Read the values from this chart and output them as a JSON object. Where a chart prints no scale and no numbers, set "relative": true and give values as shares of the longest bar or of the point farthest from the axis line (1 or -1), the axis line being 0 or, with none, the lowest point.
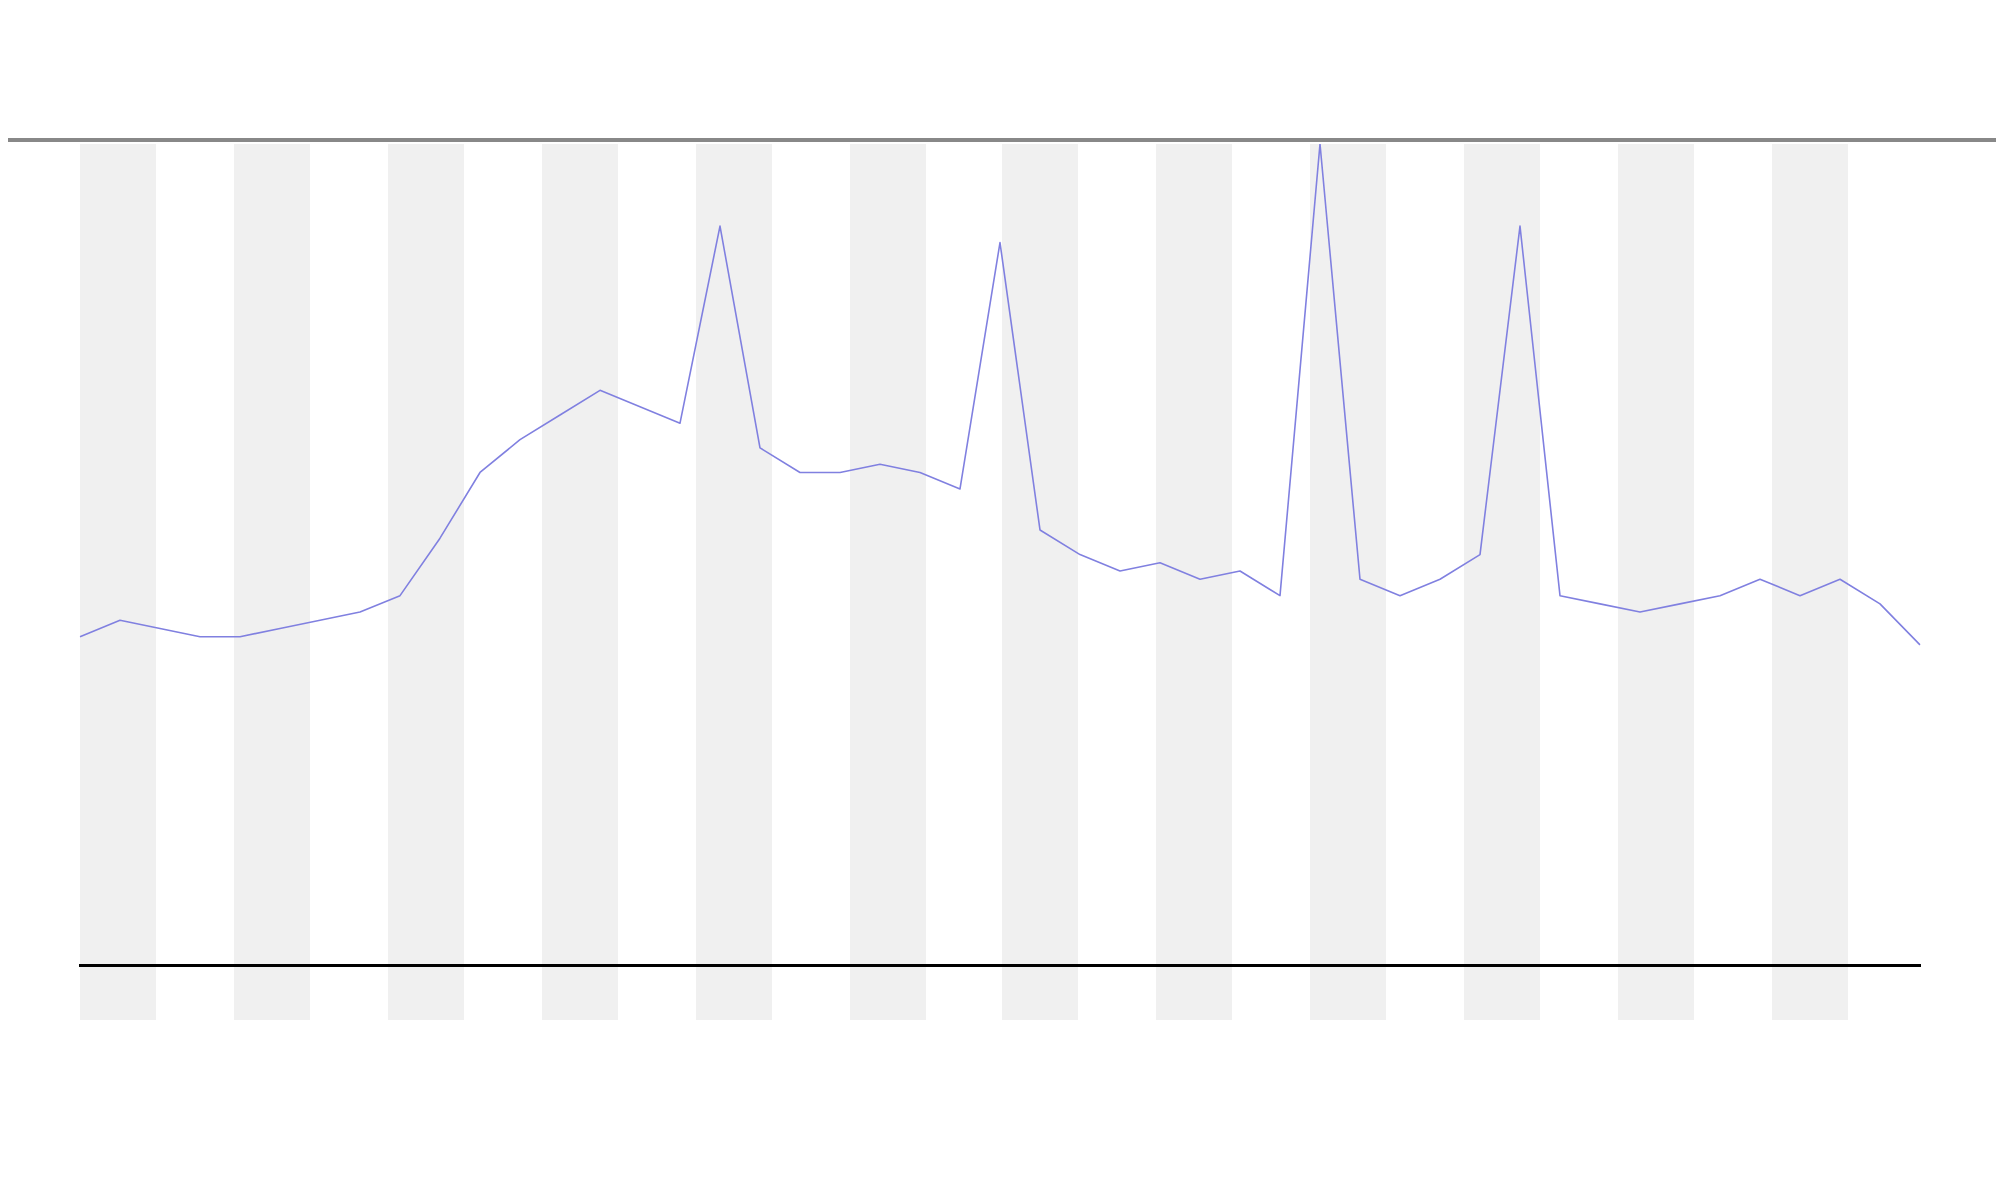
{
  "chart_data": {
    "type": "line",
    "relative": true,
    "marker": "none",
    "line_style": "solid",
    "categories": [
      null,
      null,
      null,
      null,
      null,
      null,
      null,
      null,
      null,
      null,
      null,
      null,
      null,
      null,
      null,
      null,
      null,
      null,
      null,
      null,
      null,
      null,
      null,
      null,
      null,
      null,
      null,
      null,
      null,
      null,
      null,
      null,
      null,
      null,
      null,
      null,
      null,
      null,
      null,
      null,
      null,
      null,
      null,
      null,
      null,
      null,
      null
    ],
    "series": [
      {
        "color": "#8080e0",
        "values": [
          0.4,
          0.42,
          0.41,
          0.4,
          0.4,
          0.41,
          0.42,
          0.43,
          0.45,
          0.52,
          0.6,
          0.64,
          0.67,
          0.7,
          0.68,
          0.66,
          0.9,
          0.63,
          0.6,
          0.6,
          0.61,
          0.6,
          0.58,
          0.88,
          0.53,
          0.5,
          0.48,
          0.49,
          0.47,
          0.48,
          0.45,
          1,
          0.47,
          0.45,
          0.47,
          0.5,
          0.9,
          0.45,
          0.44,
          0.43,
          0.44,
          0.45,
          0.47,
          0.45,
          0.47,
          0.44,
          0.39
        ]
      }
    ]
  }
}
